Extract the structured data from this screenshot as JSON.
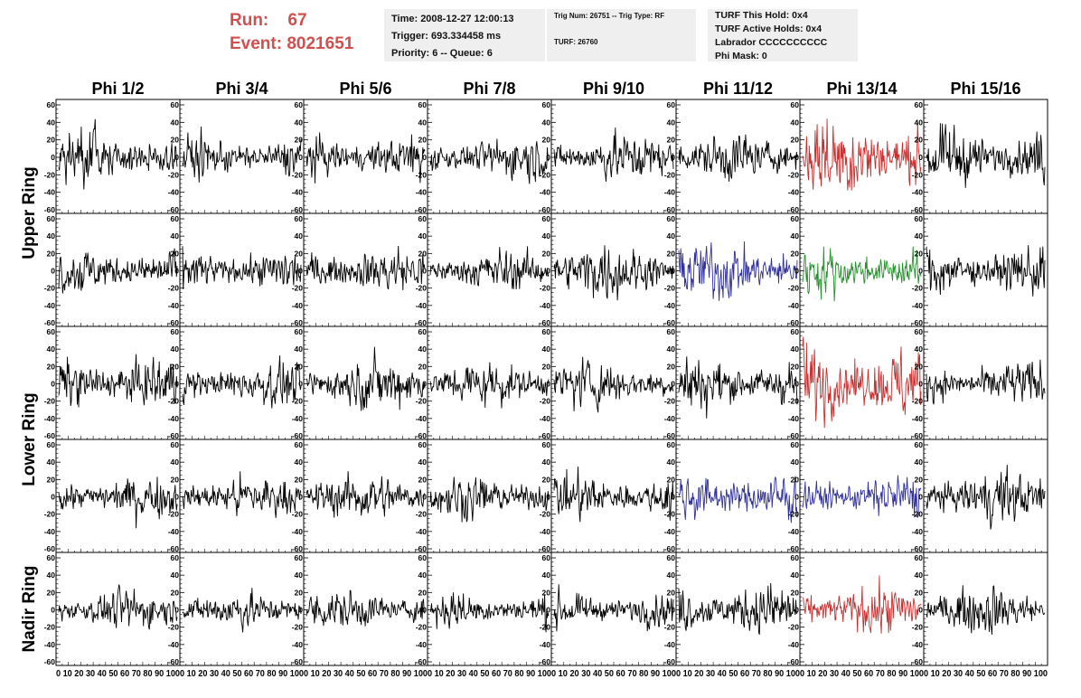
{
  "header": {
    "run_label": "Run:",
    "run_value": "67",
    "event_label": "Event:",
    "event_value": "8021651"
  },
  "info_panel_1": {
    "time": "Time: 2008-12-27 12:00:13",
    "trigger": "Trigger: 693.334458 ms",
    "priority": "Priority: 6 -- Queue: 6"
  },
  "info_panel_2": {
    "trig": "Trig Num: 26751 -- Trig Type: RF",
    "turf": "TURF: 26760"
  },
  "info_panel_3": {
    "hold": "TURF This Hold: 0x4",
    "active": "TURF Active Holds: 0x4",
    "labrador": "Labrador CCCCCCCCCC",
    "phimask": "Phi Mask: 0"
  },
  "chart_data": {
    "type": "line",
    "columns": [
      "Phi 1/2",
      "Phi 3/4",
      "Phi 5/6",
      "Phi 7/8",
      "Phi 9/10",
      "Phi 11/12",
      "Phi 13/14",
      "Phi 15/16"
    ],
    "ring_labels": [
      {
        "label": "Upper Ring",
        "rows": [
          0,
          1
        ]
      },
      {
        "label": "Lower Ring",
        "rows": [
          2,
          3
        ]
      },
      {
        "label": "Nadir Ring",
        "rows": [
          4
        ]
      }
    ],
    "ylim": [
      -60,
      60
    ],
    "yticks": [
      -60,
      -40,
      -20,
      0,
      20,
      40,
      60
    ],
    "xlim": [
      0,
      100
    ],
    "xtick_text": "0 10 20 30 40 50 60 70 80 90 100",
    "grid": false,
    "samples_per_trace": 180,
    "colors": {
      "default": "#000000",
      "red": "#c83030",
      "blue": "#2f2f9a",
      "green": "#23902a"
    },
    "panel_colors": [
      [
        "default",
        "default",
        "default",
        "default",
        "default",
        "default",
        "red",
        "default"
      ],
      [
        "default",
        "default",
        "default",
        "default",
        "default",
        "blue",
        "green",
        "default"
      ],
      [
        "default",
        "default",
        "default",
        "default",
        "default",
        "default",
        "red",
        "default"
      ],
      [
        "default",
        "default",
        "default",
        "default",
        "default",
        "blue",
        "blue",
        "default"
      ],
      [
        "default",
        "default",
        "default",
        "default",
        "default",
        "default",
        "red",
        "default"
      ]
    ],
    "panel_amplitude": [
      [
        14,
        12,
        12,
        12,
        13,
        13,
        22,
        16
      ],
      [
        13,
        12,
        13,
        11,
        15,
        16,
        13,
        14
      ],
      [
        15,
        12,
        14,
        12,
        13,
        15,
        22,
        12
      ],
      [
        12,
        12,
        13,
        12,
        13,
        14,
        12,
        14
      ],
      [
        11,
        10,
        11,
        10,
        10,
        15,
        13,
        13
      ]
    ]
  }
}
